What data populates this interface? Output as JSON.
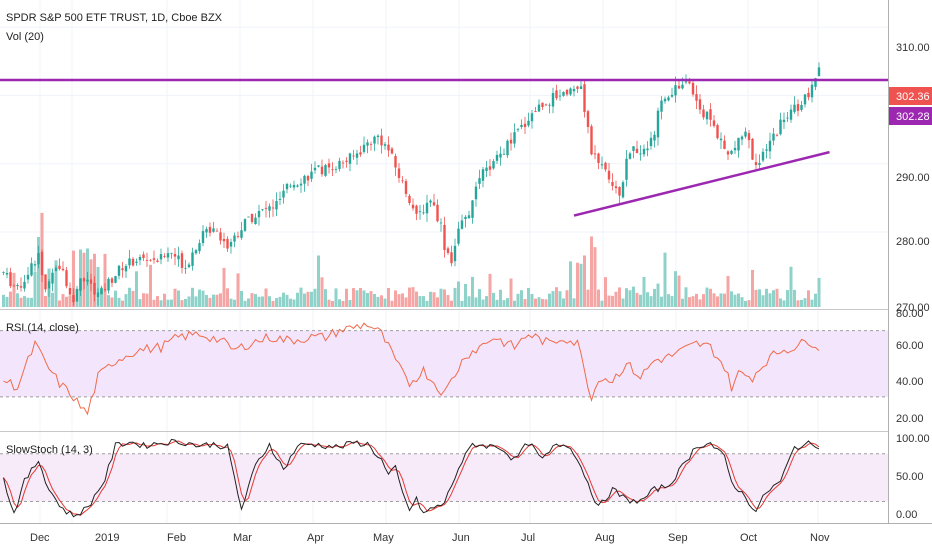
{
  "header": {
    "symbol_title": "SPDR S&P 500 ETF TRUST, 1D, Cboe BZX",
    "volume_label": "Vol (20)"
  },
  "price_pane": {
    "yticks": [
      "310.00",
      "290.00",
      "280.00",
      "270.00"
    ],
    "last_price_badge": "302.36",
    "resistance_badge": "302.28"
  },
  "rsi_pane": {
    "label": "RSI (14, close)",
    "yticks": [
      "80.00",
      "60.00",
      "40.00",
      "20.00"
    ]
  },
  "stoch_pane": {
    "label": "SlowStoch (14, 3)",
    "yticks": [
      "100.00",
      "50.00",
      "0.00"
    ]
  },
  "xaxis": {
    "labels": [
      "Dec",
      "2019",
      "Feb",
      "Mar",
      "Apr",
      "May",
      "Jun",
      "Jul",
      "Aug",
      "Sep",
      "Oct",
      "Nov"
    ]
  },
  "colors": {
    "up_candle": "#26a69a",
    "down_candle": "#ef5350",
    "up_volume": "#8fd2c9",
    "down_volume": "#f5a5a3",
    "trendline": "#9c27b0",
    "resistance_line": "#9c27b0",
    "last_price_badge": "#ef5350",
    "resistance_badge": "#9c27b0",
    "rsi_line": "#f06b4a",
    "rsi_band": "#f3e5fc",
    "stoch_k": "#222222",
    "stoch_d": "#e53935",
    "stoch_band": "#f7ebfa"
  },
  "chart_data": {
    "type": "candlestick",
    "price_range": [
      269,
      314
    ],
    "rsi_range": [
      10,
      80
    ],
    "stoch_range": [
      -7,
      106
    ],
    "resistance_level": 302.28,
    "trendline": [
      {
        "bar": 163,
        "price": 282.4
      },
      {
        "bar": 236,
        "price": 291.7
      }
    ],
    "price_anchors": [
      [
        0,
        274
      ],
      [
        4,
        271.5
      ],
      [
        8,
        275
      ],
      [
        10,
        277
      ],
      [
        12,
        271.5
      ],
      [
        16,
        275
      ],
      [
        20,
        270.5
      ],
      [
        22,
        273.5
      ],
      [
        26,
        271
      ],
      [
        29,
        272
      ],
      [
        34,
        275
      ],
      [
        38,
        276
      ],
      [
        44,
        276
      ],
      [
        48,
        277
      ],
      [
        52,
        275
      ],
      [
        56,
        279
      ],
      [
        60,
        281
      ],
      [
        64,
        278
      ],
      [
        70,
        282
      ],
      [
        74,
        283
      ],
      [
        78,
        284
      ],
      [
        82,
        287
      ],
      [
        86,
        288
      ],
      [
        90,
        289
      ],
      [
        96,
        290
      ],
      [
        100,
        291
      ],
      [
        104,
        293
      ],
      [
        107,
        294
      ],
      [
        110,
        292
      ],
      [
        114,
        287
      ],
      [
        116,
        285
      ],
      [
        118,
        282
      ],
      [
        122,
        285
      ],
      [
        125,
        281
      ],
      [
        126,
        278
      ],
      [
        128,
        276
      ],
      [
        130,
        280
      ],
      [
        134,
        284
      ],
      [
        136,
        288
      ],
      [
        140,
        290
      ],
      [
        146,
        294
      ],
      [
        152,
        298
      ],
      [
        158,
        300
      ],
      [
        162,
        301
      ],
      [
        165,
        301
      ],
      [
        166,
        298
      ],
      [
        168,
        292
      ],
      [
        172,
        289
      ],
      [
        176,
        286
      ],
      [
        178,
        290
      ],
      [
        180,
        292
      ],
      [
        182,
        292
      ],
      [
        184,
        293
      ],
      [
        186,
        295
      ],
      [
        188,
        299
      ],
      [
        192,
        301
      ],
      [
        196,
        302
      ],
      [
        200,
        297
      ],
      [
        202,
        297
      ],
      [
        204,
        294
      ],
      [
        207,
        291
      ],
      [
        210,
        293
      ],
      [
        212,
        295
      ],
      [
        214,
        291
      ],
      [
        216,
        290
      ],
      [
        218,
        292
      ],
      [
        222,
        296
      ],
      [
        226,
        298
      ],
      [
        230,
        300
      ],
      [
        232,
        302
      ],
      [
        233,
        304
      ]
    ],
    "rsi_anchors": [
      [
        0,
        40
      ],
      [
        4,
        36
      ],
      [
        9,
        62
      ],
      [
        12,
        50
      ],
      [
        16,
        38
      ],
      [
        20,
        30
      ],
      [
        22,
        24
      ],
      [
        24,
        20
      ],
      [
        27,
        42
      ],
      [
        32,
        52
      ],
      [
        38,
        58
      ],
      [
        45,
        60
      ],
      [
        50,
        66
      ],
      [
        56,
        68
      ],
      [
        62,
        64
      ],
      [
        66,
        58
      ],
      [
        70,
        62
      ],
      [
        76,
        66
      ],
      [
        82,
        64
      ],
      [
        88,
        66
      ],
      [
        92,
        66
      ],
      [
        96,
        70
      ],
      [
        100,
        72
      ],
      [
        104,
        74
      ],
      [
        108,
        68
      ],
      [
        110,
        60
      ],
      [
        114,
        44
      ],
      [
        116,
        38
      ],
      [
        120,
        46
      ],
      [
        124,
        36
      ],
      [
        126,
        32
      ],
      [
        128,
        40
      ],
      [
        132,
        55
      ],
      [
        136,
        60
      ],
      [
        140,
        66
      ],
      [
        146,
        60
      ],
      [
        150,
        68
      ],
      [
        156,
        62
      ],
      [
        160,
        66
      ],
      [
        164,
        62
      ],
      [
        166,
        48
      ],
      [
        168,
        28
      ],
      [
        170,
        42
      ],
      [
        174,
        40
      ],
      [
        178,
        50
      ],
      [
        182,
        42
      ],
      [
        186,
        52
      ],
      [
        190,
        54
      ],
      [
        194,
        58
      ],
      [
        198,
        62
      ],
      [
        202,
        60
      ],
      [
        206,
        48
      ],
      [
        208,
        36
      ],
      [
        210,
        44
      ],
      [
        214,
        42
      ],
      [
        218,
        52
      ],
      [
        222,
        58
      ],
      [
        226,
        60
      ],
      [
        230,
        64
      ],
      [
        232,
        62
      ],
      [
        233,
        60
      ]
    ],
    "stoch_anchors": [
      [
        0,
        48
      ],
      [
        3,
        5
      ],
      [
        6,
        45
      ],
      [
        10,
        72
      ],
      [
        13,
        35
      ],
      [
        17,
        10
      ],
      [
        20,
        2
      ],
      [
        24,
        12
      ],
      [
        29,
        48
      ],
      [
        32,
        90
      ],
      [
        36,
        95
      ],
      [
        40,
        90
      ],
      [
        44,
        93
      ],
      [
        48,
        95
      ],
      [
        52,
        94
      ],
      [
        56,
        90
      ],
      [
        60,
        92
      ],
      [
        64,
        88
      ],
      [
        68,
        10
      ],
      [
        72,
        65
      ],
      [
        76,
        92
      ],
      [
        80,
        60
      ],
      [
        84,
        90
      ],
      [
        88,
        92
      ],
      [
        92,
        90
      ],
      [
        96,
        88
      ],
      [
        100,
        94
      ],
      [
        104,
        92
      ],
      [
        108,
        72
      ],
      [
        110,
        52
      ],
      [
        112,
        62
      ],
      [
        114,
        30
      ],
      [
        116,
        10
      ],
      [
        118,
        22
      ],
      [
        120,
        5
      ],
      [
        122,
        10
      ],
      [
        126,
        18
      ],
      [
        130,
        62
      ],
      [
        134,
        92
      ],
      [
        138,
        90
      ],
      [
        142,
        88
      ],
      [
        146,
        72
      ],
      [
        150,
        94
      ],
      [
        154,
        72
      ],
      [
        158,
        92
      ],
      [
        162,
        90
      ],
      [
        166,
        54
      ],
      [
        170,
        12
      ],
      [
        174,
        35
      ],
      [
        178,
        22
      ],
      [
        182,
        20
      ],
      [
        186,
        35
      ],
      [
        190,
        40
      ],
      [
        194,
        64
      ],
      [
        198,
        90
      ],
      [
        202,
        93
      ],
      [
        206,
        75
      ],
      [
        208,
        45
      ],
      [
        212,
        25
      ],
      [
        215,
        8
      ],
      [
        218,
        32
      ],
      [
        222,
        45
      ],
      [
        226,
        88
      ],
      [
        230,
        92
      ],
      [
        233,
        90
      ]
    ]
  }
}
